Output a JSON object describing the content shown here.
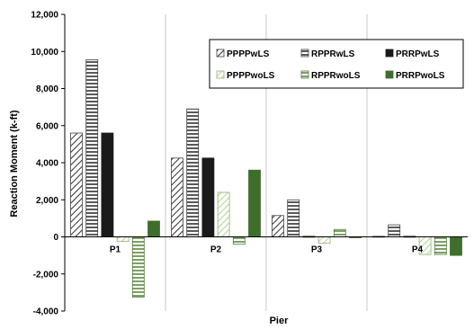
{
  "chart_data": {
    "type": "bar",
    "title": "",
    "xlabel": "Pier",
    "ylabel": "Reaction Moment (k-ft)",
    "ylim": [
      -4000,
      12000
    ],
    "yticks": [
      -4000,
      -2000,
      0,
      2000,
      4000,
      6000,
      8000,
      10000,
      12000
    ],
    "ytick_labels": [
      "-4,000",
      "-2,000",
      "0",
      "2,000",
      "4,000",
      "6,000",
      "8,000",
      "10,000",
      "12,000"
    ],
    "categories": [
      "P1",
      "P2",
      "P3",
      "P4"
    ],
    "grid": "vertical",
    "legend_position": "top-right",
    "series": [
      {
        "name": "PPPPwLS",
        "values": [
          5600,
          4250,
          1150,
          30
        ],
        "pattern": "diagonal",
        "color": "#404040"
      },
      {
        "name": "RPPRwLS",
        "values": [
          9550,
          6900,
          2000,
          650
        ],
        "pattern": "horizontal",
        "color": "#404040"
      },
      {
        "name": "PRRPwLS",
        "values": [
          5600,
          4250,
          30,
          30
        ],
        "pattern": "solid",
        "color": "#1a1a1a"
      },
      {
        "name": "PPPPwoLS",
        "values": [
          -250,
          2400,
          -350,
          -950
        ],
        "pattern": "light-diagonal",
        "color": "#7aa05a"
      },
      {
        "name": "RPPRwoLS",
        "values": [
          -3250,
          -400,
          400,
          -950
        ],
        "pattern": "green-horizontal",
        "color": "#4f7a35"
      },
      {
        "name": "PRRPwoLS",
        "values": [
          850,
          3600,
          -30,
          -1000
        ],
        "pattern": "green-solid",
        "color": "#3f6e2c"
      }
    ]
  }
}
